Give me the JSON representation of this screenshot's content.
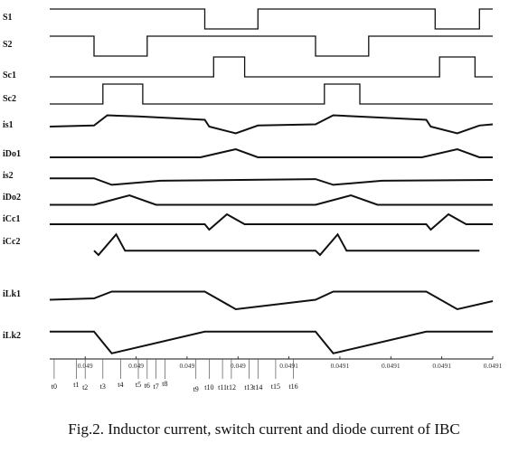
{
  "caption": "Fig.2. Inductor current, switch current and diode current of IBC",
  "chart_data": {
    "type": "line",
    "title": "",
    "xlabel": "",
    "ylabel": "",
    "grid": false,
    "x_tick_labels": [
      "0.049",
      "0.049",
      "0.049",
      "0.049",
      "0.0491",
      "0.0491",
      "0.0491",
      "0.0491",
      "0.0491"
    ],
    "time_markers": [
      "t0",
      "t1",
      "t2",
      "t3",
      "t4",
      "t5",
      "t6",
      "t7",
      "t8",
      "t9",
      "t10",
      "t11",
      "t12",
      "t13",
      "t14",
      "t15",
      "t16"
    ],
    "series": [
      {
        "name": "S1",
        "style": "logic",
        "levels": [
          1,
          0,
          1,
          0,
          1
        ],
        "edges": [
          0.35,
          0.47,
          0.87,
          0.97
        ]
      },
      {
        "name": "S2",
        "style": "logic",
        "levels": [
          1,
          0,
          1,
          0,
          1
        ],
        "edges": [
          0.1,
          0.22,
          0.6,
          0.72
        ]
      },
      {
        "name": "Sc1",
        "style": "logic",
        "levels": [
          0,
          1,
          0,
          1,
          0
        ],
        "edges": [
          0.37,
          0.44,
          0.88,
          0.96
        ]
      },
      {
        "name": "Sc2",
        "style": "logic",
        "levels": [
          0,
          1,
          0,
          1,
          0
        ],
        "edges": [
          0.12,
          0.21,
          0.62,
          0.7
        ]
      },
      {
        "name": "is1",
        "style": "wave",
        "points": [
          [
            0,
            0.4
          ],
          [
            0.1,
            0.45
          ],
          [
            0.13,
            0.9
          ],
          [
            0.2,
            0.85
          ],
          [
            0.35,
            0.7
          ],
          [
            0.36,
            0.4
          ],
          [
            0.42,
            0.1
          ],
          [
            0.47,
            0.45
          ],
          [
            0.6,
            0.5
          ],
          [
            0.64,
            0.9
          ],
          [
            0.85,
            0.7
          ],
          [
            0.86,
            0.4
          ],
          [
            0.92,
            0.1
          ],
          [
            0.97,
            0.45
          ],
          [
            1,
            0.5
          ]
        ]
      },
      {
        "name": "iDo1",
        "style": "wave",
        "points": [
          [
            0,
            0.2
          ],
          [
            0.34,
            0.2
          ],
          [
            0.42,
            0.8
          ],
          [
            0.47,
            0.2
          ],
          [
            0.84,
            0.2
          ],
          [
            0.92,
            0.8
          ],
          [
            0.97,
            0.2
          ],
          [
            1,
            0.2
          ]
        ]
      },
      {
        "name": "is2",
        "style": "wave",
        "points": [
          [
            0,
            0.6
          ],
          [
            0.1,
            0.6
          ],
          [
            0.14,
            0.2
          ],
          [
            0.25,
            0.45
          ],
          [
            0.6,
            0.55
          ],
          [
            0.64,
            0.2
          ],
          [
            0.75,
            0.45
          ],
          [
            1,
            0.5
          ]
        ]
      },
      {
        "name": "iDo2",
        "style": "wave",
        "points": [
          [
            0,
            0.1
          ],
          [
            0.1,
            0.1
          ],
          [
            0.18,
            0.8
          ],
          [
            0.24,
            0.1
          ],
          [
            0.6,
            0.1
          ],
          [
            0.68,
            0.8
          ],
          [
            0.74,
            0.1
          ],
          [
            1,
            0.1
          ]
        ]
      },
      {
        "name": "iCc1",
        "style": "wave",
        "points": [
          [
            0,
            0.35
          ],
          [
            0.35,
            0.35
          ],
          [
            0.36,
            0.05
          ],
          [
            0.4,
            0.9
          ],
          [
            0.44,
            0.35
          ],
          [
            0.85,
            0.35
          ],
          [
            0.86,
            0.05
          ],
          [
            0.9,
            0.9
          ],
          [
            0.94,
            0.35
          ],
          [
            1,
            0.35
          ]
        ]
      },
      {
        "name": "iCc2",
        "style": "wave",
        "points": [
          [
            0.1,
            0.2
          ],
          [
            0.11,
            0.0
          ],
          [
            0.15,
            0.95
          ],
          [
            0.17,
            0.2
          ],
          [
            0.22,
            0.2
          ],
          [
            0.6,
            0.2
          ],
          [
            0.61,
            0.0
          ],
          [
            0.65,
            0.95
          ],
          [
            0.67,
            0.2
          ],
          [
            0.72,
            0.2
          ],
          [
            0.97,
            0.2
          ]
        ]
      },
      {
        "name": "iLk1",
        "style": "wave",
        "points": [
          [
            0,
            0.55
          ],
          [
            0.1,
            0.6
          ],
          [
            0.14,
            0.85
          ],
          [
            0.35,
            0.85
          ],
          [
            0.42,
            0.2
          ],
          [
            0.6,
            0.55
          ],
          [
            0.64,
            0.85
          ],
          [
            0.85,
            0.85
          ],
          [
            0.92,
            0.2
          ],
          [
            1,
            0.5
          ]
        ]
      },
      {
        "name": "iLk2",
        "style": "wave",
        "points": [
          [
            0,
            0.85
          ],
          [
            0.1,
            0.85
          ],
          [
            0.14,
            0.1
          ],
          [
            0.35,
            0.85
          ],
          [
            0.6,
            0.85
          ],
          [
            0.64,
            0.1
          ],
          [
            0.85,
            0.85
          ],
          [
            1,
            0.85
          ]
        ]
      }
    ]
  }
}
